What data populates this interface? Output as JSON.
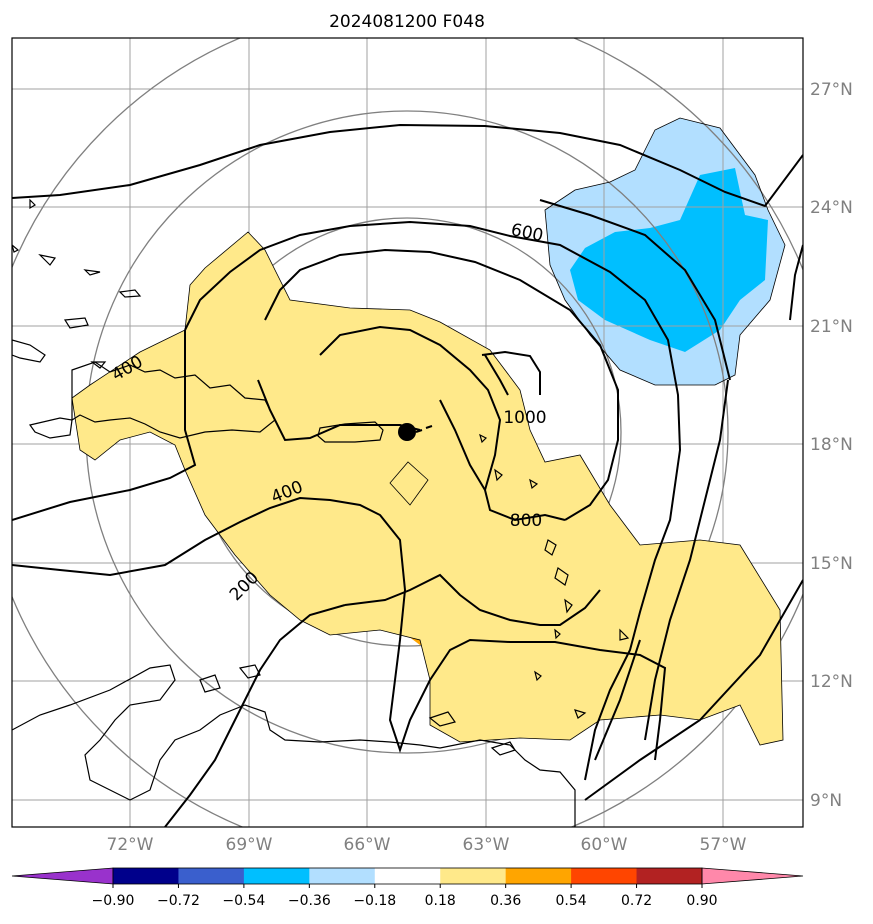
{
  "title": "2024081200 F048",
  "latitude_labels": [
    "27°N",
    "24°N",
    "21°N",
    "18°N",
    "15°N",
    "12°N",
    "9°N"
  ],
  "longitude_labels": [
    "72°W",
    "69°W",
    "66°W",
    "63°W",
    "60°W",
    "57°W"
  ],
  "contour_labels": [
    "600",
    "400",
    "1000",
    "400",
    "800",
    "200"
  ],
  "colorbar": {
    "ticks": [
      "−0.90",
      "−0.72",
      "−0.54",
      "−0.36",
      "−0.18",
      "0.18",
      "0.36",
      "0.54",
      "0.72",
      "0.90"
    ],
    "colors": [
      "#9932cc",
      "#00008b",
      "#3a5fcd",
      "#00bfff",
      "#b2dfff",
      "#ffffff",
      "#ffe98a",
      "#ffa500",
      "#ff4500",
      "#b22222",
      "#ff88aa"
    ]
  },
  "colors": {
    "yellow": "#ffe98a",
    "orange": "#ffa500",
    "red": "#ff4500",
    "lightblue": "#b2dfff",
    "blue": "#00bfff",
    "grid": "#a0a0a0",
    "circle": "#808080"
  },
  "center_marker": "storm-center-dot"
}
